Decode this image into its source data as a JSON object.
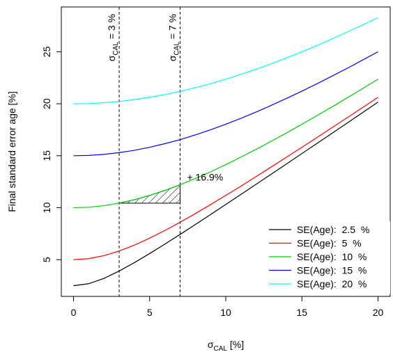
{
  "chart_data": {
    "type": "line",
    "y_label": "Final standard error age [%]",
    "x_label": {
      "symbol": "σ",
      "sub": "CAL",
      "text": " [%]"
    },
    "x": [
      0,
      1,
      2,
      3,
      4,
      5,
      6,
      7,
      8,
      9,
      10,
      11,
      12,
      13,
      14,
      15,
      16,
      17,
      18,
      19,
      20
    ],
    "series": [
      {
        "name": "SE(Age):  2.5  %",
        "color": "#000000",
        "values": [
          2.5,
          2.69,
          3.2,
          3.91,
          4.72,
          5.59,
          6.5,
          7.43,
          8.38,
          9.34,
          10.31,
          11.28,
          12.26,
          13.24,
          14.22,
          15.21,
          16.19,
          17.18,
          18.17,
          19.16,
          20.16
        ]
      },
      {
        "name": "SE(Age):  5  %",
        "color": "#ff0000",
        "values": [
          5,
          5.1,
          5.39,
          5.83,
          6.4,
          7.07,
          7.81,
          8.6,
          9.43,
          10.3,
          11.18,
          12.08,
          13,
          13.93,
          14.87,
          15.81,
          16.76,
          17.72,
          18.68,
          19.65,
          20.62
        ]
      },
      {
        "name": "SE(Age):  10  %",
        "color": "#00cd00",
        "values": [
          10,
          10.05,
          10.2,
          10.44,
          10.77,
          11.18,
          11.66,
          12.21,
          12.81,
          13.45,
          14.14,
          14.87,
          15.62,
          16.4,
          17.2,
          18.03,
          18.87,
          19.72,
          20.59,
          21.47,
          22.36
        ]
      },
      {
        "name": "SE(Age):  15  %",
        "color": "#0000ff",
        "values": [
          15,
          15.03,
          15.13,
          15.3,
          15.52,
          15.81,
          16.16,
          16.55,
          17,
          17.49,
          18.03,
          18.6,
          19.21,
          19.85,
          20.52,
          21.21,
          21.93,
          22.67,
          23.43,
          24.21,
          25
        ]
      },
      {
        "name": "SE(Age):  20  %",
        "color": "#00ffff",
        "values": [
          20,
          20.02,
          20.1,
          20.22,
          20.4,
          20.62,
          20.88,
          21.19,
          21.54,
          21.93,
          22.36,
          22.83,
          23.32,
          23.85,
          24.41,
          25,
          25.61,
          26.25,
          26.91,
          27.59,
          28.28
        ]
      }
    ],
    "vlines": [
      {
        "value": 3,
        "label": {
          "symbol": "σ",
          "sub": "CAL",
          "text": " = 3 %"
        }
      },
      {
        "value": 7,
        "label": {
          "symbol": "σ",
          "sub": "CAL",
          "text": " = 7 %"
        }
      }
    ],
    "annotation": "+ 16.9%",
    "xlim": [
      -0.8,
      20.8
    ],
    "xticks": [
      0,
      5,
      10,
      15,
      20
    ],
    "ylim": [
      1.47,
      29.31
    ],
    "yticks": [
      5,
      10,
      15,
      20,
      25
    ],
    "legend": "bottom-right"
  }
}
